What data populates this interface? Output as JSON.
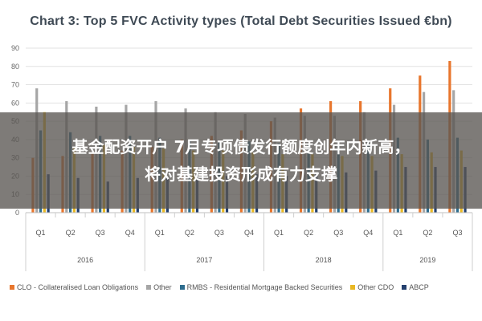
{
  "chart_data": {
    "type": "bar",
    "title": "Chart 3: Top 5 FVC Activity types (Total Debt Securities Issued €bn)",
    "xlabel": "",
    "ylabel": "",
    "ylim": [
      0,
      90
    ],
    "yticks": [
      0,
      10,
      20,
      30,
      40,
      50,
      60,
      70,
      80,
      90
    ],
    "grid": true,
    "legend_position": "bottom",
    "categories": [
      "Q1",
      "Q2",
      "Q3",
      "Q4",
      "Q1",
      "Q2",
      "Q3",
      "Q4",
      "Q1",
      "Q2",
      "Q3",
      "Q4",
      "Q1",
      "Q2",
      "Q3"
    ],
    "years": [
      {
        "label": "2016",
        "span": 4
      },
      {
        "label": "2017",
        "span": 4
      },
      {
        "label": "2018",
        "span": 4
      },
      {
        "label": "2019",
        "span": 3
      }
    ],
    "series": [
      {
        "name": "CLO - Collateralised Loan Obligations",
        "color": "#e8762d",
        "values": [
          30,
          31,
          33,
          34,
          36,
          40,
          42,
          45,
          50,
          57,
          61,
          61,
          68,
          75,
          83
        ]
      },
      {
        "name": "Other",
        "color": "#a6a6a6",
        "values": [
          68,
          61,
          58,
          59,
          61,
          57,
          55,
          54,
          52,
          53,
          53,
          55,
          59,
          66,
          67
        ]
      },
      {
        "name": "RMBS - Residential Mortgage Backed Securities",
        "color": "#2e6d8e",
        "values": [
          45,
          44,
          42,
          42,
          41,
          40,
          39,
          39,
          38,
          38,
          38,
          39,
          41,
          40,
          41
        ]
      },
      {
        "name": "Other CDO",
        "color": "#e9b824",
        "values": [
          55,
          36,
          37,
          36,
          35,
          34,
          34,
          33,
          32,
          32,
          31,
          31,
          32,
          33,
          34
        ]
      },
      {
        "name": "ABCP",
        "color": "#24406e",
        "values": [
          21,
          19,
          17,
          19,
          19,
          20,
          20,
          21,
          20,
          21,
          22,
          23,
          25,
          25,
          25
        ]
      }
    ]
  },
  "overlay": {
    "line1": "基金配资开户 7月专项债发行额度创年内新高，",
    "line2": "将对基建投资形成有力支撑"
  }
}
